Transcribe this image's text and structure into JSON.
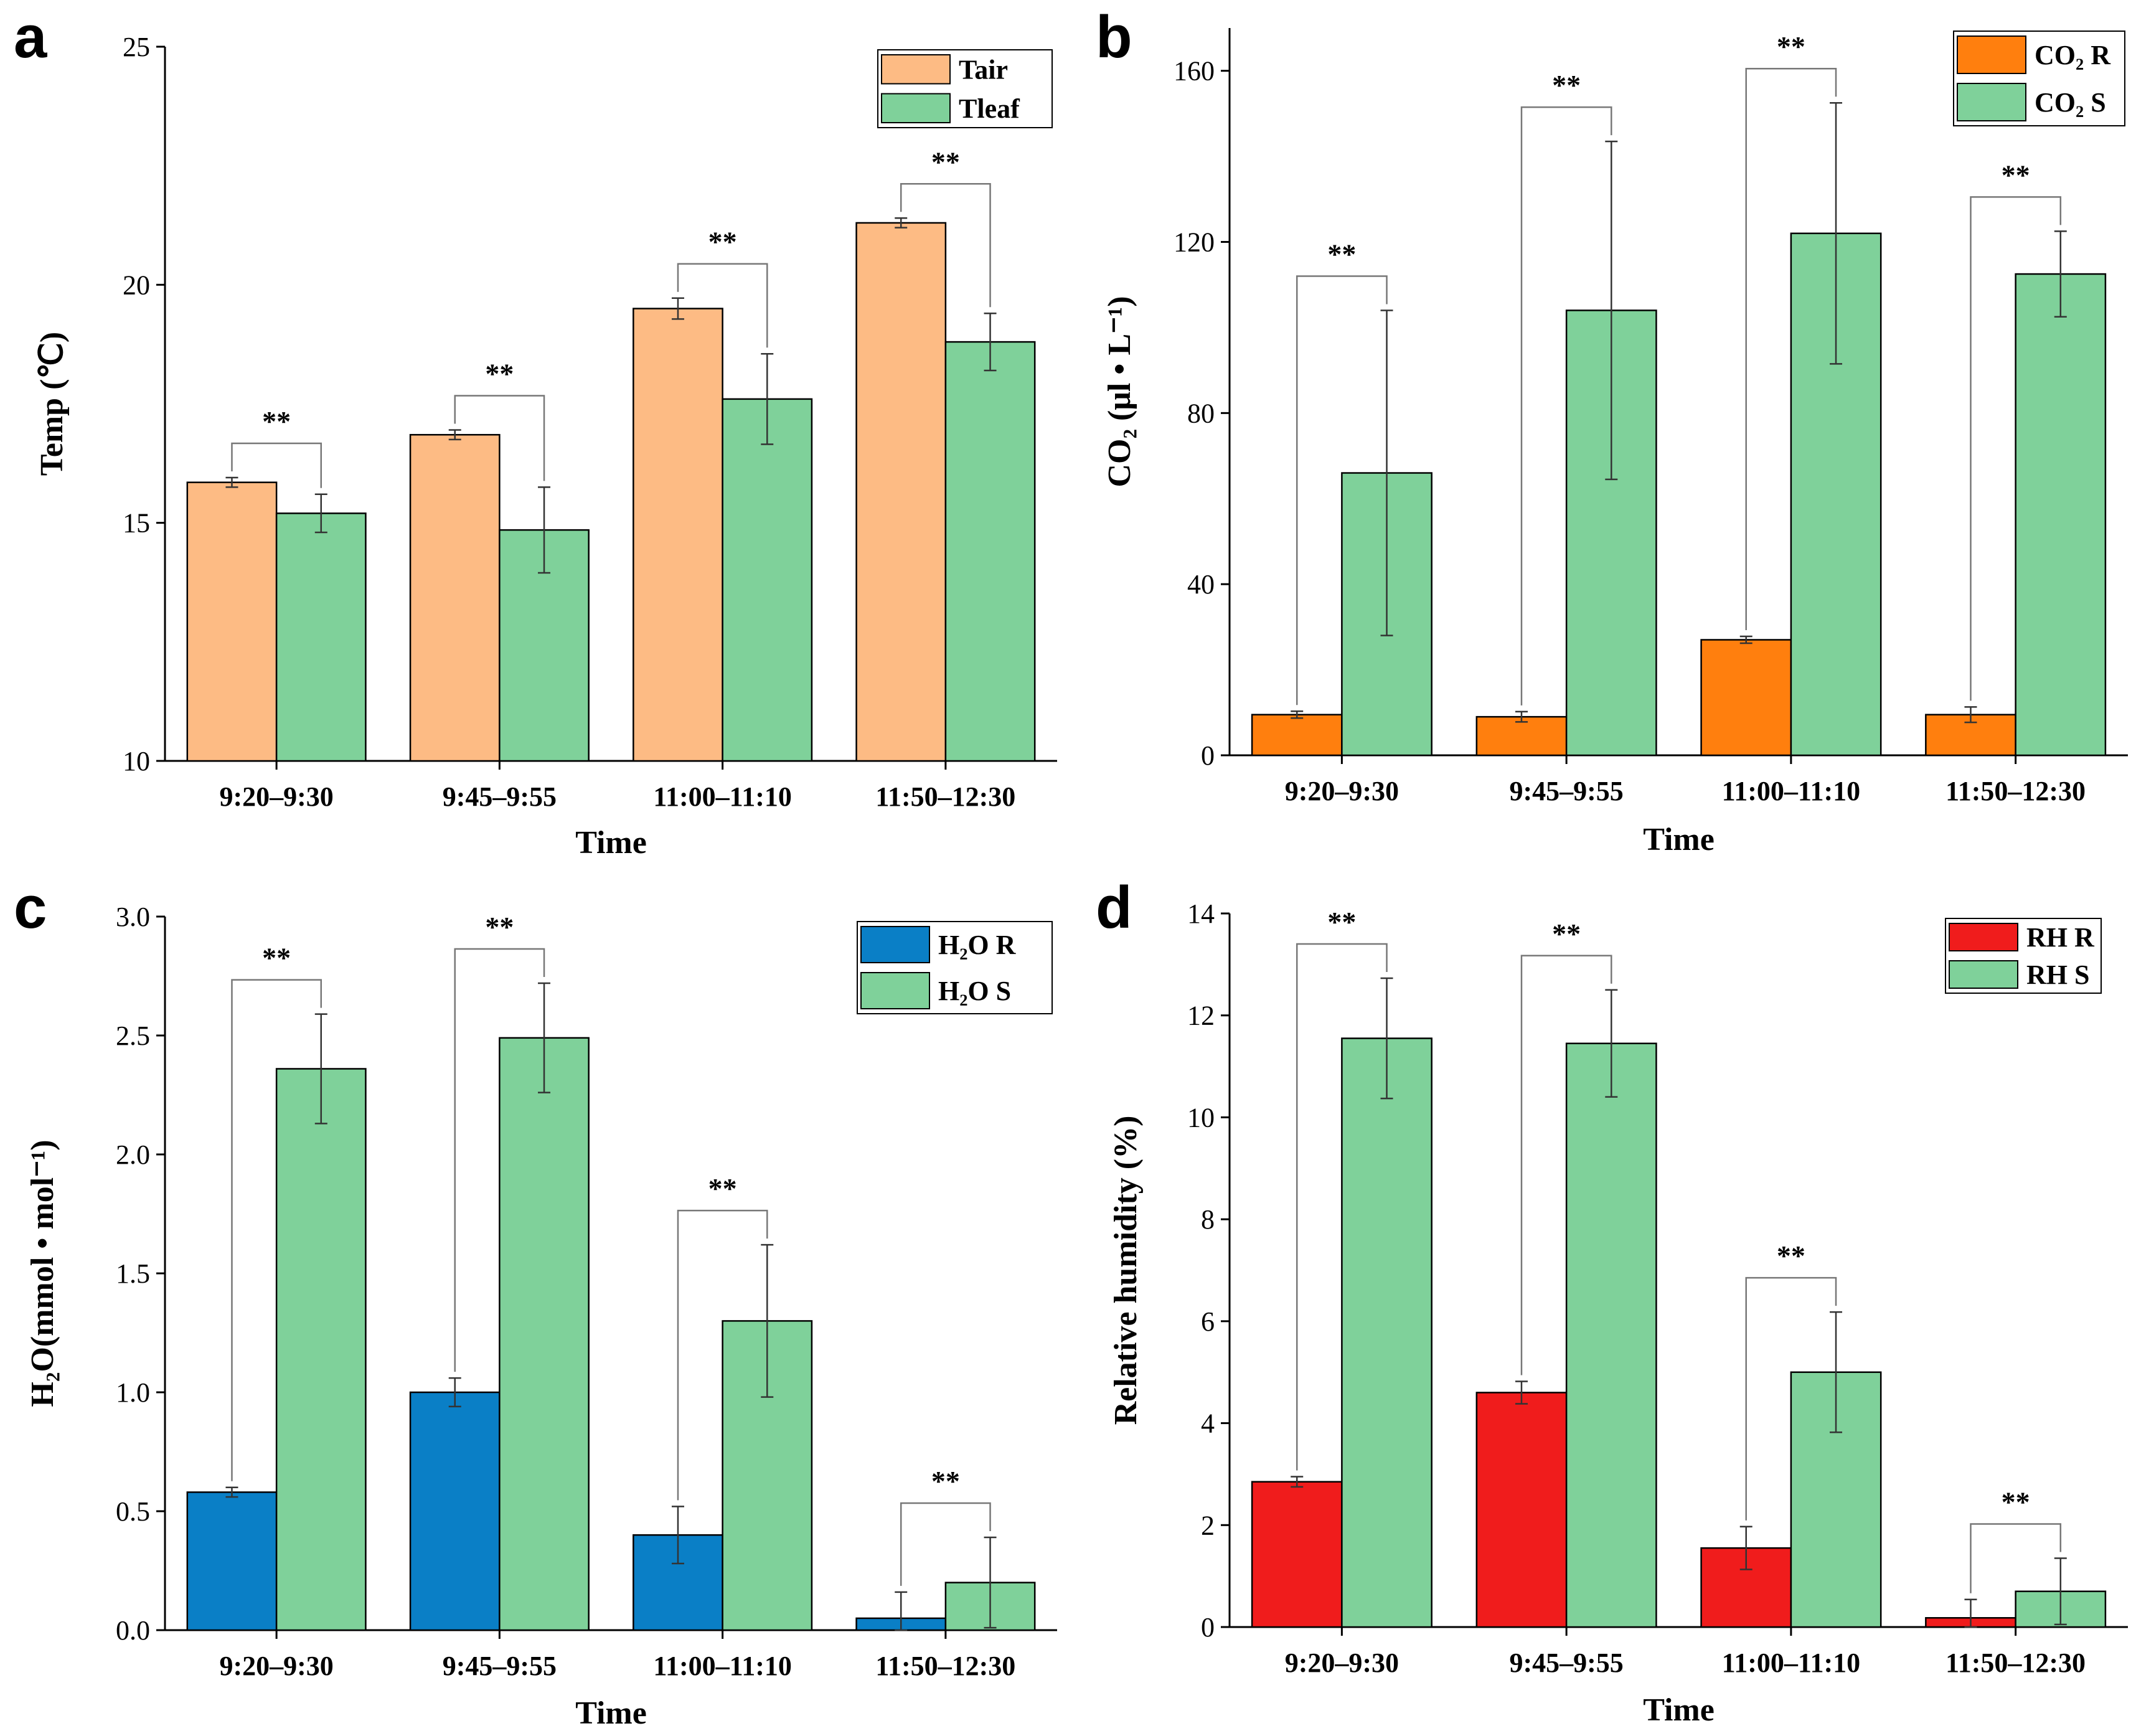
{
  "chart_data": [
    {
      "type": "bar",
      "panel": "a",
      "categories": [
        "9:20–9:30",
        "9:45–9:55",
        "11:00–11:10",
        "11:50–12:30"
      ],
      "series": [
        {
          "name": "Tair",
          "color": "#FDBB84",
          "values": [
            15.85,
            16.85,
            19.5,
            21.3
          ],
          "errors": [
            0.1,
            0.1,
            0.22,
            0.1
          ]
        },
        {
          "name": "Tleaf",
          "color": "#7FD19A",
          "values": [
            15.2,
            14.85,
            17.6,
            18.8
          ],
          "errors": [
            0.4,
            0.9,
            0.95,
            0.6
          ]
        }
      ],
      "xlabel": "Time",
      "ylabel": "Temp (℃)",
      "ylim": [
        10,
        25
      ],
      "yticks": [
        "10",
        "15",
        "20",
        "25"
      ],
      "significance": [
        "**",
        "**",
        "**",
        "**"
      ],
      "legend_position": "top-right"
    },
    {
      "type": "bar",
      "panel": "b",
      "categories": [
        "9:20–9:30",
        "9:45–9:55",
        "11:00–11:10",
        "11:50–12:30"
      ],
      "series": [
        {
          "name": "CO₂ R",
          "color": "#FF7F0E",
          "values": [
            9.5,
            9,
            27,
            9.5
          ],
          "errors": [
            0.8,
            1.2,
            0.8,
            1.8
          ]
        },
        {
          "name": "CO₂ S",
          "color": "#7FD19A",
          "values": [
            66,
            104,
            122,
            112.5
          ],
          "errors": [
            38,
            39.5,
            30.5,
            10
          ]
        }
      ],
      "xlabel": "Time",
      "ylabel": "CO₂ (μl • L⁻¹)",
      "ylim": [
        0,
        170
      ],
      "yticks": [
        "0",
        "40",
        "80",
        "120",
        "160"
      ],
      "significance": [
        "**",
        "**",
        "**",
        "**"
      ],
      "legend_position": "top-right"
    },
    {
      "type": "bar",
      "panel": "c",
      "categories": [
        "9:20–9:30",
        "9:45–9:55",
        "11:00–11:10",
        "11:50–12:30"
      ],
      "series": [
        {
          "name": "H₂O R",
          "color": "#0A7FC6",
          "values": [
            0.58,
            1.0,
            0.4,
            0.05
          ],
          "errors": [
            0.02,
            0.06,
            0.12,
            0.11
          ]
        },
        {
          "name": "H₂O S",
          "color": "#7FD19A",
          "values": [
            2.36,
            2.49,
            1.3,
            0.2
          ],
          "errors": [
            0.23,
            0.23,
            0.32,
            0.19
          ]
        }
      ],
      "xlabel": "Time",
      "ylabel": "H₂O(mmol • mol⁻¹)",
      "ylim": [
        0,
        3.0
      ],
      "yticks": [
        "0.0",
        "0.5",
        "1.0",
        "1.5",
        "2.0",
        "2.5",
        "3.0"
      ],
      "significance": [
        "**",
        "**",
        "**",
        "**"
      ],
      "legend_position": "top-right"
    },
    {
      "type": "bar",
      "panel": "d",
      "categories": [
        "9:20–9:30",
        "9:45–9:55",
        "11:00–11:10",
        "11:50–12:30"
      ],
      "series": [
        {
          "name": "RH R",
          "color": "#F01C1C",
          "values": [
            2.85,
            4.6,
            1.55,
            0.18
          ],
          "errors": [
            0.1,
            0.22,
            0.42,
            0.36
          ]
        },
        {
          "name": "RH S",
          "color": "#7FD19A",
          "values": [
            11.55,
            11.45,
            5.0,
            0.7
          ],
          "errors": [
            1.18,
            1.05,
            1.18,
            0.65
          ]
        }
      ],
      "xlabel": "Time",
      "ylabel": "Relative humidity (%)",
      "ylim": [
        0,
        14
      ],
      "yticks": [
        "0",
        "2",
        "4",
        "6",
        "8",
        "10",
        "12",
        "14"
      ],
      "significance": [
        "**",
        "**",
        "**",
        "**"
      ],
      "legend_position": "top-right"
    }
  ]
}
